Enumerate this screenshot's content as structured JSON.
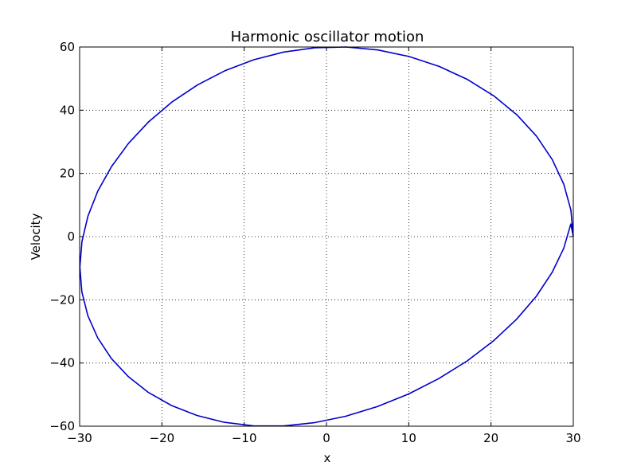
{
  "chart_data": {
    "type": "line",
    "title": "Harmonic oscillator motion",
    "xlabel": "x",
    "ylabel": "Velocity",
    "xlim": [
      -30,
      30
    ],
    "ylim": [
      -60,
      60
    ],
    "xticks": [
      -30,
      -20,
      -10,
      0,
      10,
      20,
      30
    ],
    "yticks": [
      -60,
      -40,
      -20,
      0,
      20,
      40,
      60
    ],
    "xtick_labels": [
      "−30",
      "−20",
      "−10",
      "0",
      "10",
      "20",
      "30"
    ],
    "ytick_labels": [
      "−60",
      "−40",
      "−20",
      "0",
      "20",
      "40",
      "60"
    ],
    "grid": true,
    "series": [
      {
        "color": "#0000cc",
        "x": [
          30.0,
          29.71,
          28.85,
          27.44,
          25.53,
          23.14,
          20.33,
          17.16,
          13.7,
          10.03,
          6.24,
          2.4,
          -1.41,
          -5.18,
          -8.84,
          -12.37,
          -15.69,
          -18.78,
          -21.58,
          -24.04,
          -26.12,
          -27.78,
          -28.99,
          -29.72,
          -29.97,
          -29.73,
          -29.0,
          -27.8,
          -26.15,
          -24.08,
          -21.63,
          -18.84,
          -15.75,
          -12.43,
          -8.9,
          -5.24,
          -1.48,
          2.34,
          6.17,
          9.97,
          13.64,
          17.11,
          20.28,
          23.1,
          25.5,
          27.42,
          28.84,
          29.7,
          30.0
        ],
        "y": [
          0.0,
          8.36,
          16.55,
          24.41,
          31.79,
          38.55,
          44.54,
          49.68,
          53.86,
          57.01,
          59.07,
          60.0,
          59.78,
          58.42,
          55.96,
          52.45,
          47.97,
          42.58,
          36.4,
          29.56,
          22.19,
          14.44,
          6.46,
          -1.59,
          -9.62,
          -17.47,
          -25.0,
          -32.05,
          -38.54,
          -44.33,
          -49.33,
          -53.44,
          -56.6,
          -58.76,
          -59.87,
          -59.92,
          -58.9,
          -56.85,
          -53.8,
          -49.81,
          -44.95,
          -39.32,
          -33.02,
          -26.18,
          -18.92,
          -11.38,
          -3.7,
          3.99,
          0.0
        ]
      }
    ]
  }
}
